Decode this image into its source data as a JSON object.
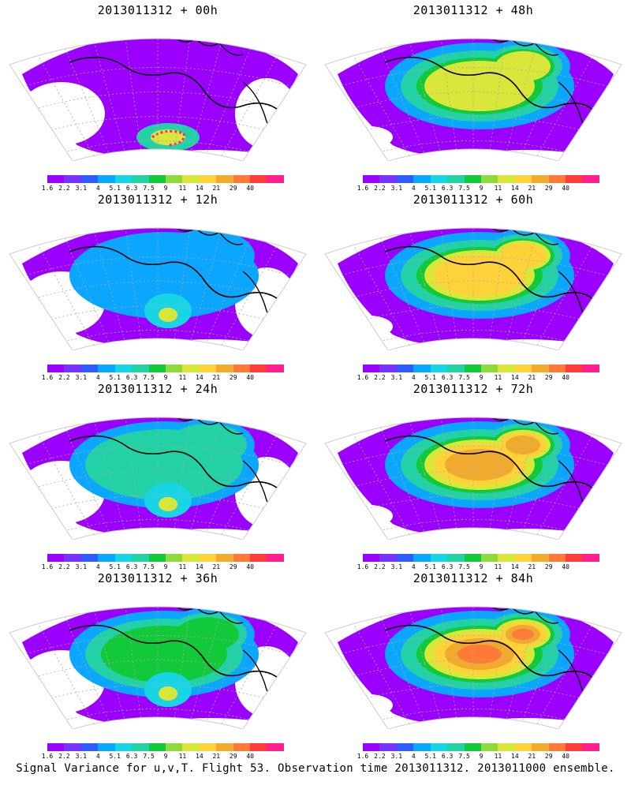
{
  "colorbar": {
    "colors": [
      "#9b00ff",
      "#7a33ff",
      "#2c5cff",
      "#0aa6ff",
      "#16d6e6",
      "#22d2a6",
      "#12c93a",
      "#8fd93c",
      "#d9e63a",
      "#ffd23a",
      "#f0aa2e",
      "#ff7a36",
      "#ff3b3b",
      "#ff1f8f"
    ],
    "labels": [
      "1.6",
      "2.2",
      "3.1",
      "4",
      "5.1",
      "6.3",
      "7.5",
      "9",
      "11",
      "14",
      "21",
      "29",
      "40"
    ]
  },
  "panels": [
    {
      "id": "p00",
      "title": "2013011312 + 00h",
      "level": 0
    },
    {
      "id": "p48",
      "title": "2013011312 + 48h",
      "level": 0.55
    },
    {
      "id": "p12",
      "title": "2013011312 + 12h",
      "level": 0.15
    },
    {
      "id": "p60",
      "title": "2013011312 + 60h",
      "level": 0.65
    },
    {
      "id": "p24",
      "title": "2013011312 + 24h",
      "level": 0.28
    },
    {
      "id": "p72",
      "title": "2013011312 + 72h",
      "level": 0.72
    },
    {
      "id": "p36",
      "title": "2013011312 + 36h",
      "level": 0.4
    },
    {
      "id": "p84",
      "title": "2013011312 + 84h",
      "level": 0.8
    }
  ],
  "footer": "Signal Variance for u,v,T. Flight 53. Observation time 2013011312. 2013011000 ensemble."
}
